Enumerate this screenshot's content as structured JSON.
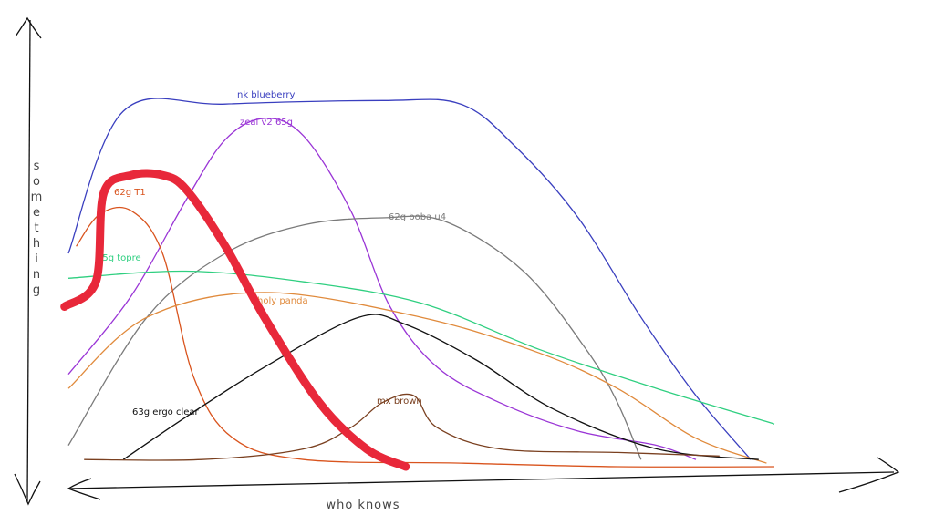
{
  "chart_data": {
    "type": "line",
    "xlabel": "who knows",
    "ylabel": "something",
    "xlim": [
      0,
      100
    ],
    "ylim": [
      0,
      100
    ],
    "grid": false,
    "series": [
      {
        "name": "nk blueberry",
        "color": "#3a3fbf",
        "x": [
          0,
          7,
          20,
          40,
          50,
          57,
          65,
          73,
          80,
          87
        ],
        "y": [
          60,
          100,
          102,
          103,
          102,
          90,
          70,
          42,
          20,
          2
        ]
      },
      {
        "name": "zeal v2 65g",
        "color": "#9a35d6",
        "x": [
          0,
          8,
          15,
          20,
          25,
          30,
          36,
          41,
          47,
          55,
          65,
          75,
          80
        ],
        "y": [
          26,
          48,
          75,
          92,
          98,
          93,
          72,
          45,
          28,
          18,
          10,
          6,
          2
        ]
      },
      {
        "name": "62g boba u4",
        "color": "#7a7a7a",
        "x": [
          0,
          10,
          20,
          30,
          40,
          48,
          58,
          66,
          70,
          73
        ],
        "y": [
          6,
          42,
          60,
          68,
          70,
          69,
          55,
          33,
          18,
          2
        ]
      },
      {
        "name": "62g T1",
        "color": "#d9541e",
        "x": [
          1,
          4,
          8,
          12,
          16,
          21,
          30,
          50,
          70,
          90
        ],
        "y": [
          62,
          71,
          72,
          60,
          25,
          8,
          2,
          1,
          0,
          0
        ]
      },
      {
        "name": "45g topre",
        "color": "#2fcf80",
        "x": [
          0,
          15,
          30,
          45,
          60,
          75,
          90
        ],
        "y": [
          53,
          55,
          52,
          46,
          33,
          22,
          12
        ]
      },
      {
        "name": "holy panda",
        "color": "#e08a3c",
        "x": [
          0,
          10,
          25,
          45,
          60,
          70,
          80,
          89
        ],
        "y": [
          22,
          42,
          49,
          42,
          32,
          22,
          8,
          1
        ]
      },
      {
        "name": "63g ergo clear",
        "color": "#111111",
        "x": [
          7,
          15,
          25,
          37,
          43,
          52,
          62,
          75,
          88
        ],
        "y": [
          2,
          14,
          28,
          42,
          40,
          30,
          16,
          5,
          2
        ]
      },
      {
        "name": "mx brown",
        "color": "#7a4020",
        "x": [
          2,
          17,
          30,
          36,
          40,
          44,
          47,
          55,
          70,
          83
        ],
        "y": [
          2,
          2,
          5,
          11,
          18,
          20,
          11,
          5,
          4,
          3
        ]
      }
    ],
    "annotation": {
      "color": "#e8283a",
      "x": [
        -0.5,
        3.5,
        4.5,
        8,
        12,
        15,
        20,
        25,
        32,
        38,
        43
      ],
      "y": [
        45,
        52,
        77,
        82,
        82,
        78,
        62,
        42,
        18,
        5,
        0
      ]
    }
  }
}
